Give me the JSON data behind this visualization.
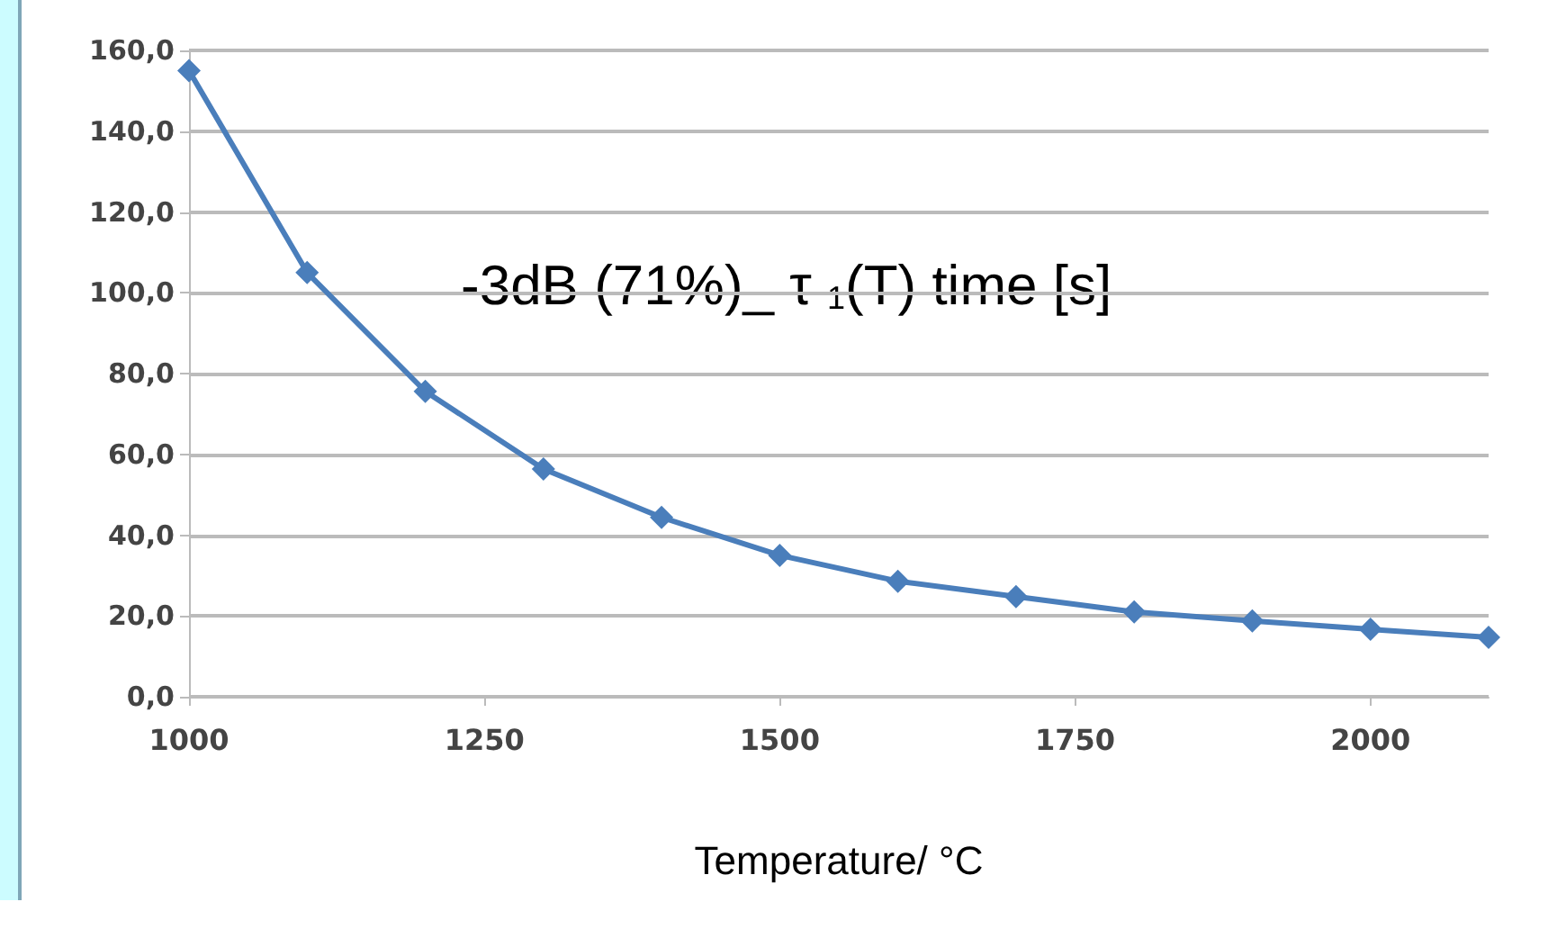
{
  "chart_data": {
    "type": "line",
    "xlabel": "Temperature/ °C",
    "annotations": [
      "-3dB (71%)_ τ $_{1}$(T) time [s]"
    ],
    "x": [
      1000,
      1100,
      1200,
      1300,
      1400,
      1500,
      1600,
      1700,
      1800,
      1900,
      2000,
      2100
    ],
    "series": [
      {
        "color": "#4a7ebb",
        "values": [
          155,
          105,
          75.6,
          56.4,
          44.4,
          35,
          28.6,
          24.8,
          21,
          18.8,
          16.7,
          14.7
        ]
      }
    ],
    "xlim": [
      1000,
      2100
    ],
    "xticks": [
      1000,
      1250,
      1500,
      1750,
      2000
    ],
    "ylim": [
      0,
      160
    ],
    "yticks": [
      {
        "value": 0,
        "label": "0,0"
      },
      {
        "value": 20,
        "label": "20,0"
      },
      {
        "value": 40,
        "label": "40,0"
      },
      {
        "value": 60,
        "label": "60,0"
      },
      {
        "value": 80,
        "label": "80,0"
      },
      {
        "value": 100,
        "label": "100,0"
      },
      {
        "value": 120,
        "label": "120,0"
      },
      {
        "value": 140,
        "label": "140,0"
      },
      {
        "value": 160,
        "label": "160,0"
      }
    ],
    "grid": "y",
    "marker": "diamond",
    "line_style": "solid"
  }
}
